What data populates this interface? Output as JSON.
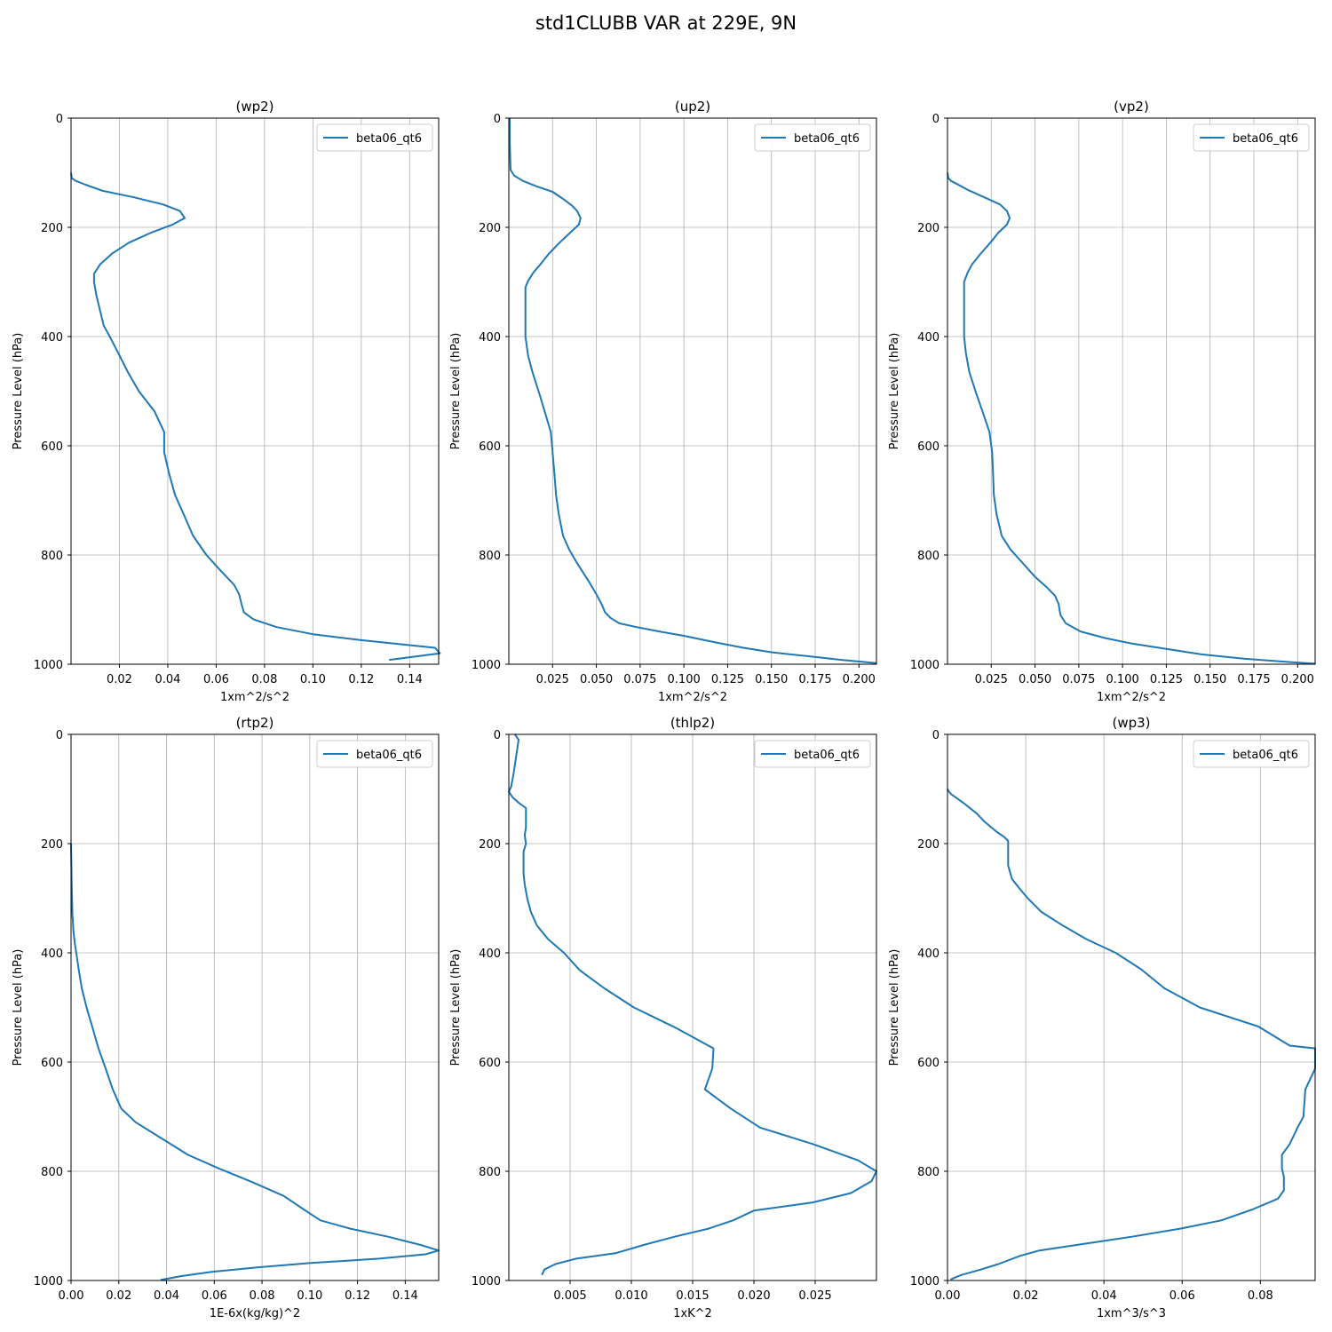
{
  "figure": {
    "title": "std1CLUBB VAR at 229E, 9N",
    "line_color": "#1f77b4"
  },
  "chart_data": [
    {
      "type": "line",
      "title": "(wp2)",
      "xlabel": "1xm^2/s^2",
      "ylabel": "Pressure Level (hPa)",
      "xlim": [
        0.0,
        0.152
      ],
      "ylim": [
        1000,
        0
      ],
      "y_inverted": true,
      "grid": true,
      "legend_position": "upper-right",
      "xticks": [
        0.02,
        0.04,
        0.06,
        0.08,
        0.1,
        0.12,
        0.14
      ],
      "xtick_labels": [
        "0.02",
        "0.04",
        "0.06",
        "0.08",
        "0.10",
        "0.12",
        "0.14"
      ],
      "yticks": [
        0,
        200,
        400,
        600,
        800,
        1000
      ],
      "ytick_labels": [
        "0",
        "200",
        "400",
        "600",
        "800",
        "1000"
      ],
      "series": [
        {
          "name": "beta06_qt6",
          "x": [
            0.0,
            0.0003,
            0.002,
            0.006,
            0.013,
            0.026,
            0.038,
            0.045,
            0.047,
            0.042,
            0.033,
            0.024,
            0.017,
            0.012,
            0.0095,
            0.0095,
            0.0105,
            0.0135,
            0.016,
            0.0195,
            0.0235,
            0.028,
            0.0345,
            0.0385,
            0.0385,
            0.0405,
            0.043,
            0.0465,
            0.0505,
            0.056,
            0.0615,
            0.0675,
            0.0695,
            0.0705,
            0.0715,
            0.0755,
            0.085,
            0.1,
            0.12,
            0.1505,
            0.1525,
            0.1315
          ],
          "y": [
            100,
            110,
            115,
            122,
            133,
            145,
            158,
            170,
            183,
            195,
            210,
            228,
            248,
            268,
            285,
            300,
            325,
            380,
            400,
            430,
            465,
            500,
            537,
            575,
            612,
            650,
            690,
            725,
            765,
            800,
            827,
            855,
            872,
            890,
            905,
            918,
            932,
            945,
            956,
            970,
            980,
            992
          ]
        }
      ]
    },
    {
      "type": "line",
      "title": "(up2)",
      "xlabel": "1xm^2/s^2",
      "ylabel": "Pressure Level (hPa)",
      "xlim": [
        0.0,
        0.21
      ],
      "ylim": [
        1000,
        0
      ],
      "y_inverted": true,
      "grid": true,
      "legend_position": "upper-right",
      "xticks": [
        0.025,
        0.05,
        0.075,
        0.1,
        0.125,
        0.15,
        0.175,
        0.2
      ],
      "xtick_labels": [
        "0.025",
        "0.050",
        "0.075",
        "0.100",
        "0.125",
        "0.150",
        "0.175",
        "0.200"
      ],
      "yticks": [
        0,
        200,
        400,
        600,
        800,
        1000
      ],
      "ytick_labels": [
        "0",
        "200",
        "400",
        "600",
        "800",
        "1000"
      ],
      "series": [
        {
          "name": "beta06_qt6",
          "x": [
            0.0005,
            0.0005,
            0.001,
            0.003,
            0.008,
            0.016,
            0.025,
            0.031,
            0.036,
            0.039,
            0.041,
            0.04,
            0.035,
            0.029,
            0.023,
            0.018,
            0.014,
            0.011,
            0.0095,
            0.0095,
            0.0095,
            0.0095,
            0.011,
            0.0135,
            0.017,
            0.0205,
            0.024,
            0.025,
            0.026,
            0.027,
            0.0285,
            0.031,
            0.0345,
            0.039,
            0.046,
            0.05,
            0.053,
            0.055,
            0.058,
            0.063,
            0.073,
            0.086,
            0.1,
            0.118,
            0.134,
            0.15,
            0.17,
            0.19,
            0.21
          ],
          "y": [
            0,
            40,
            95,
            105,
            115,
            125,
            135,
            148,
            160,
            170,
            183,
            195,
            210,
            228,
            248,
            268,
            283,
            298,
            310,
            325,
            380,
            400,
            435,
            465,
            500,
            537,
            575,
            612,
            650,
            690,
            725,
            765,
            790,
            815,
            850,
            872,
            890,
            905,
            915,
            925,
            932,
            940,
            948,
            960,
            970,
            978,
            985,
            992,
            998
          ]
        }
      ]
    },
    {
      "type": "line",
      "title": "(vp2)",
      "xlabel": "1xm^2/s^2",
      "ylabel": "Pressure Level (hPa)",
      "xlim": [
        0.0,
        0.21
      ],
      "ylim": [
        1000,
        0
      ],
      "y_inverted": true,
      "grid": true,
      "legend_position": "upper-right",
      "xticks": [
        0.025,
        0.05,
        0.075,
        0.1,
        0.125,
        0.15,
        0.175,
        0.2
      ],
      "xtick_labels": [
        "0.025",
        "0.050",
        "0.075",
        "0.100",
        "0.125",
        "0.150",
        "0.175",
        "0.200"
      ],
      "yticks": [
        0,
        200,
        400,
        600,
        800,
        1000
      ],
      "ytick_labels": [
        "0",
        "200",
        "400",
        "600",
        "800",
        "1000"
      ],
      "series": [
        {
          "name": "beta06_qt6",
          "x": [
            0.0,
            0.0005,
            0.002,
            0.005,
            0.012,
            0.021,
            0.03,
            0.034,
            0.0355,
            0.034,
            0.029,
            0.0245,
            0.019,
            0.014,
            0.0115,
            0.0095,
            0.0095,
            0.0095,
            0.0105,
            0.0125,
            0.016,
            0.02,
            0.024,
            0.0255,
            0.026,
            0.0265,
            0.028,
            0.031,
            0.036,
            0.043,
            0.05,
            0.057,
            0.0615,
            0.0635,
            0.0645,
            0.0675,
            0.076,
            0.09,
            0.105,
            0.125,
            0.145,
            0.17,
            0.195,
            0.21
          ],
          "y": [
            100,
            110,
            115,
            120,
            132,
            145,
            158,
            170,
            183,
            195,
            210,
            228,
            248,
            268,
            283,
            300,
            325,
            400,
            430,
            465,
            500,
            537,
            575,
            612,
            650,
            690,
            725,
            765,
            790,
            815,
            840,
            860,
            875,
            890,
            910,
            925,
            940,
            952,
            962,
            972,
            982,
            990,
            996,
            999
          ]
        }
      ]
    },
    {
      "type": "line",
      "title": "(rtp2)",
      "xlabel": "1E-6x(kg/kg)^2",
      "ylabel": "Pressure Level (hPa)",
      "xlim": [
        0.0,
        0.154
      ],
      "ylim": [
        1000,
        0
      ],
      "y_inverted": true,
      "grid": true,
      "legend_position": "upper-right",
      "xticks": [
        0.0,
        0.02,
        0.04,
        0.06,
        0.08,
        0.1,
        0.12,
        0.14
      ],
      "xtick_labels": [
        "0.00",
        "0.02",
        "0.04",
        "0.06",
        "0.08",
        "0.10",
        "0.12",
        "0.14"
      ],
      "yticks": [
        0,
        200,
        400,
        600,
        800,
        1000
      ],
      "ytick_labels": [
        "0",
        "200",
        "400",
        "600",
        "800",
        "1000"
      ],
      "series": [
        {
          "name": "beta06_qt6",
          "x": [
            0.0,
            0.0003,
            0.0006,
            0.001,
            0.0015,
            0.0022,
            0.0032,
            0.0045,
            0.0065,
            0.009,
            0.0115,
            0.0145,
            0.0175,
            0.021,
            0.027,
            0.038,
            0.049,
            0.062,
            0.076,
            0.089,
            0.0975,
            0.1045,
            0.117,
            0.133,
            0.1465,
            0.154,
            0.1485,
            0.129,
            0.1005,
            0.078,
            0.059,
            0.046,
            0.0375
          ],
          "y": [
            200,
            280,
            330,
            360,
            380,
            400,
            430,
            465,
            500,
            537,
            575,
            612,
            650,
            685,
            710,
            740,
            770,
            795,
            820,
            845,
            870,
            890,
            905,
            920,
            935,
            945,
            952,
            960,
            968,
            976,
            984,
            992,
            999
          ]
        }
      ]
    },
    {
      "type": "line",
      "title": "(thlp2)",
      "xlabel": "1xK^2",
      "ylabel": "Pressure Level (hPa)",
      "xlim": [
        0.0,
        0.03
      ],
      "ylim": [
        1000,
        0
      ],
      "y_inverted": true,
      "grid": true,
      "legend_position": "upper-right",
      "xticks": [
        0.005,
        0.01,
        0.015,
        0.02,
        0.025
      ],
      "xtick_labels": [
        "0.005",
        "0.010",
        "0.015",
        "0.020",
        "0.025"
      ],
      "yticks": [
        0,
        200,
        400,
        600,
        800,
        1000
      ],
      "ytick_labels": [
        "0",
        "200",
        "400",
        "600",
        "800",
        "1000"
      ],
      "series": [
        {
          "name": "beta06_qt6",
          "x": [
            0.0005,
            0.0008,
            0.0006,
            0.0004,
            0.0002,
            0.0,
            0.0003,
            0.0008,
            0.0014,
            0.0014,
            0.0013,
            0.0014,
            0.0012,
            0.0012,
            0.0012,
            0.0013,
            0.0015,
            0.0018,
            0.0023,
            0.0032,
            0.0045,
            0.0058,
            0.0078,
            0.0102,
            0.0136,
            0.0167,
            0.0166,
            0.016,
            0.0181,
            0.0205,
            0.0248,
            0.0285,
            0.03,
            0.0296,
            0.0279,
            0.0248,
            0.02,
            0.0183,
            0.0163,
            0.0135,
            0.011,
            0.0087,
            0.0055,
            0.0038,
            0.0029,
            0.0027
          ],
          "y": [
            0,
            10,
            40,
            70,
            95,
            105,
            115,
            125,
            135,
            170,
            185,
            200,
            215,
            235,
            255,
            275,
            300,
            325,
            350,
            375,
            400,
            432,
            465,
            500,
            537,
            575,
            612,
            650,
            685,
            720,
            750,
            780,
            800,
            818,
            840,
            857,
            872,
            890,
            905,
            920,
            935,
            950,
            960,
            970,
            980,
            990
          ]
        }
      ]
    },
    {
      "type": "line",
      "title": "(wp3)",
      "xlabel": "1xm^3/s^3",
      "ylabel": "Pressure Level (hPa)",
      "xlim": [
        0.0,
        0.094
      ],
      "ylim": [
        1000,
        0
      ],
      "y_inverted": true,
      "grid": true,
      "legend_position": "upper-right",
      "xticks": [
        0.0,
        0.02,
        0.04,
        0.06,
        0.08
      ],
      "xtick_labels": [
        "0.00",
        "0.02",
        "0.04",
        "0.06",
        "0.08"
      ],
      "yticks": [
        0,
        200,
        400,
        600,
        800,
        1000
      ],
      "ytick_labels": [
        "0",
        "200",
        "400",
        "600",
        "800",
        "1000"
      ],
      "series": [
        {
          "name": "beta06_qt6",
          "x": [
            0.0,
            0.0004,
            0.001,
            0.004,
            0.0075,
            0.0095,
            0.0125,
            0.0145,
            0.0155,
            0.0155,
            0.0155,
            0.0165,
            0.0185,
            0.0205,
            0.024,
            0.0295,
            0.0355,
            0.043,
            0.0495,
            0.0555,
            0.0645,
            0.0795,
            0.0875,
            0.094,
            0.094,
            0.0915,
            0.091,
            0.0895,
            0.0875,
            0.0855,
            0.0855,
            0.086,
            0.086,
            0.0845,
            0.078,
            0.07,
            0.0595,
            0.047,
            0.033,
            0.0235,
            0.0185,
            0.013,
            0.0085,
            0.0035,
            0.0008
          ],
          "y": [
            100,
            105,
            110,
            125,
            145,
            160,
            178,
            188,
            195,
            210,
            240,
            265,
            283,
            300,
            325,
            350,
            375,
            400,
            430,
            465,
            500,
            535,
            570,
            575,
            612,
            650,
            700,
            720,
            750,
            770,
            795,
            810,
            835,
            850,
            870,
            890,
            905,
            920,
            935,
            945,
            955,
            970,
            980,
            990,
            998
          ]
        }
      ]
    }
  ]
}
